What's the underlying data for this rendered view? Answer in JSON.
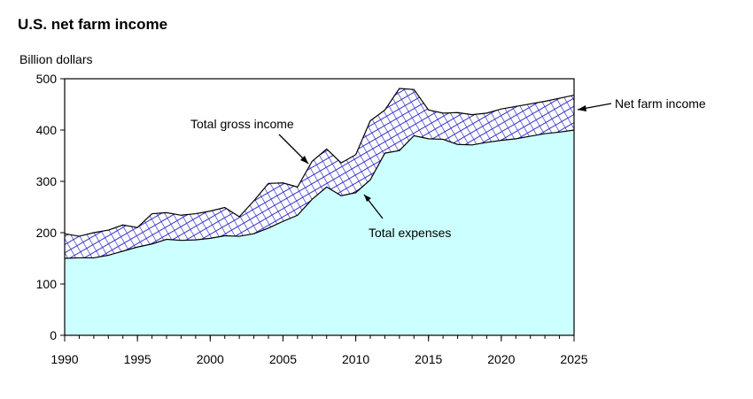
{
  "chart_data": {
    "type": "area",
    "title": "U.S. net farm income",
    "ylabel": "Billion dollars",
    "xlabel": "",
    "xlim": [
      1990,
      2025
    ],
    "ylim": [
      0,
      500
    ],
    "x_ticks": [
      1990,
      1995,
      2000,
      2005,
      2010,
      2015,
      2020,
      2025
    ],
    "y_ticks": [
      0,
      100,
      200,
      300,
      400,
      500
    ],
    "colors": {
      "expenses_fill": "#ccffff",
      "band_fill": "#ffffff",
      "band_pattern": "#3333cc",
      "outline": "#000000"
    },
    "series": [
      {
        "name": "Total gross income",
        "x": [
          1990,
          1991,
          1992,
          1993,
          1994,
          1995,
          1996,
          1997,
          1998,
          1999,
          2000,
          2001,
          2002,
          2003,
          2004,
          2005,
          2006,
          2007,
          2008,
          2009,
          2010,
          2011,
          2012,
          2013,
          2014,
          2015,
          2016,
          2017,
          2018,
          2019,
          2020,
          2021,
          2022,
          2023,
          2024,
          2025
        ],
        "values": [
          198,
          193,
          200,
          205,
          215,
          210,
          237,
          239,
          234,
          237,
          242,
          249,
          231,
          262,
          296,
          297,
          289,
          339,
          363,
          336,
          352,
          418,
          439,
          481,
          479,
          439,
          433,
          434,
          430,
          433,
          441,
          446,
          451,
          456,
          462,
          468
        ]
      },
      {
        "name": "Total expenses",
        "x": [
          1990,
          1991,
          1992,
          1993,
          1994,
          1995,
          1996,
          1997,
          1998,
          1999,
          2000,
          2001,
          2002,
          2003,
          2004,
          2005,
          2006,
          2007,
          2008,
          2009,
          2010,
          2011,
          2012,
          2013,
          2014,
          2015,
          2016,
          2017,
          2018,
          2019,
          2020,
          2021,
          2022,
          2023,
          2024,
          2025
        ],
        "values": [
          150,
          151,
          151,
          156,
          164,
          172,
          178,
          187,
          185,
          186,
          189,
          194,
          193,
          198,
          209,
          222,
          234,
          265,
          289,
          272,
          278,
          303,
          355,
          360,
          389,
          383,
          382,
          372,
          371,
          376,
          380,
          383,
          388,
          393,
          396,
          400
        ]
      }
    ],
    "annotations": [
      {
        "text": "Total gross income",
        "target_series": "Total gross income",
        "target_x": 2007.5
      },
      {
        "text": "Total expenses",
        "target_series": "Total expenses",
        "target_x": 2010.5
      },
      {
        "text": "Net farm income",
        "target_series": "Net farm income band",
        "target_x": 2025
      }
    ]
  }
}
